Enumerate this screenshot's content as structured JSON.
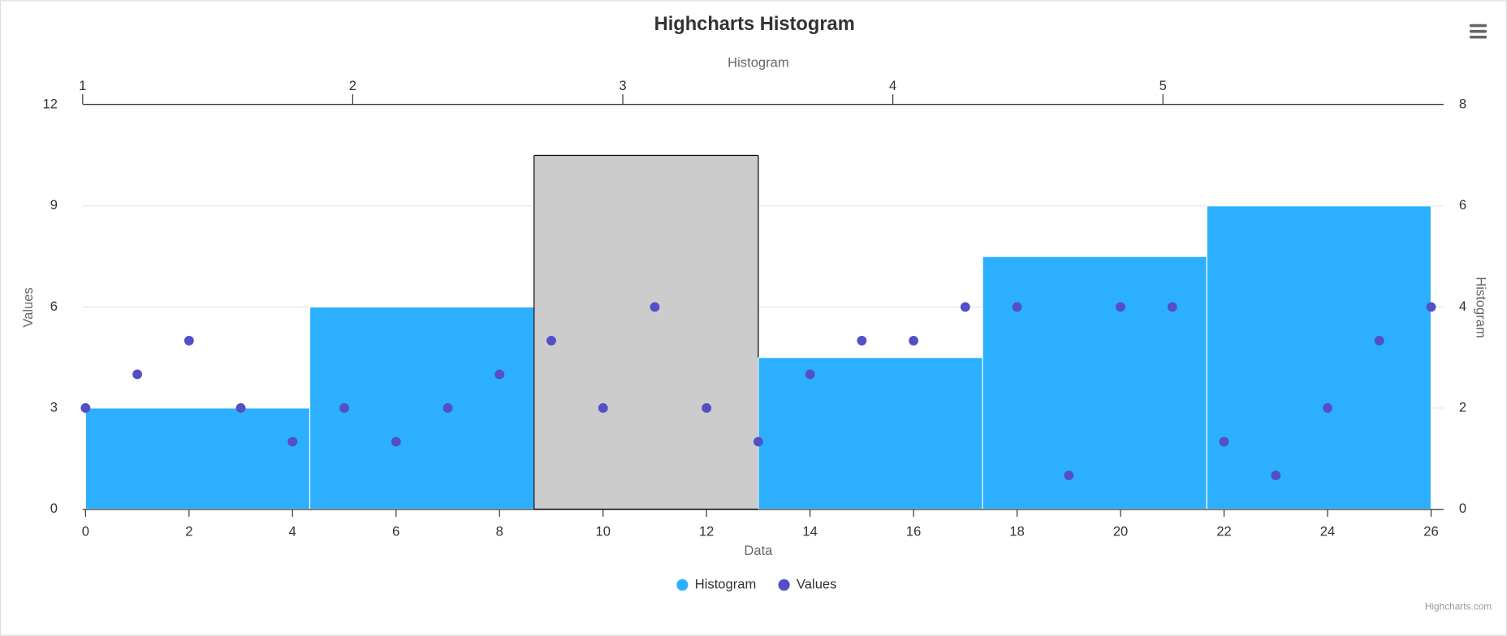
{
  "chart_data": {
    "type": "histogram",
    "title": "Highcharts Histogram",
    "x_title": "Data",
    "x2_title": "Histogram",
    "y_title": "Values",
    "y2_title": "Histogram",
    "xlim": [
      0,
      26
    ],
    "xticks": [
      0,
      2,
      4,
      6,
      8,
      10,
      12,
      14,
      16,
      18,
      20,
      22,
      24,
      26
    ],
    "x2lim": [
      1,
      6
    ],
    "x2ticks": [
      1,
      2,
      3,
      4,
      5
    ],
    "ylim": [
      0,
      12
    ],
    "yticks": [
      0,
      3,
      6,
      9,
      12
    ],
    "y2lim": [
      0,
      8
    ],
    "y2ticks": [
      0,
      2,
      4,
      6,
      8
    ],
    "grid": true,
    "bins": [
      0,
      4.333,
      8.667,
      13,
      17.333,
      21.667,
      26
    ],
    "series": [
      {
        "name": "Histogram",
        "type": "histogram",
        "axis": "y2",
        "color": "#2caffe",
        "bar_colors": [
          "#2caffe",
          "#2caffe",
          "#cccccc",
          "#2caffe",
          "#2caffe",
          "#2caffe"
        ],
        "values": [
          2,
          4,
          7,
          3,
          5,
          6
        ]
      },
      {
        "name": "Values",
        "type": "scatter",
        "color": "#544fc5",
        "x": [
          0,
          1,
          2,
          3,
          4,
          5,
          6,
          7,
          8,
          9,
          10,
          11,
          12,
          13,
          14,
          15,
          16,
          17,
          18,
          19,
          20,
          21,
          22,
          23,
          24,
          25,
          26
        ],
        "values": [
          3,
          4,
          5,
          3,
          2,
          3,
          2,
          3,
          4,
          5,
          3,
          6,
          3,
          2,
          4,
          5,
          5,
          6,
          6,
          1,
          6,
          6,
          2,
          1,
          3,
          5,
          6
        ]
      }
    ],
    "credits": "Highcharts.com"
  }
}
